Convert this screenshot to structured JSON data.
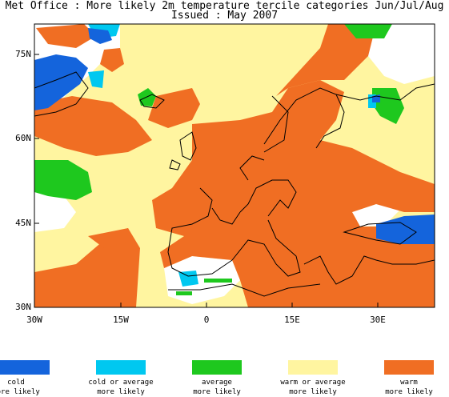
{
  "title": "Met Office : More likely 2m temperature tercile categories Jun/Jul/Aug",
  "subtitle": "Issued : May 2007",
  "axes": {
    "lat_labels": [
      "75N",
      "60N",
      "45N",
      "30N"
    ],
    "lon_labels": [
      "30W",
      "15W",
      "0",
      "15E",
      "30E"
    ]
  },
  "colors": {
    "cold": "#1464dc",
    "cold_or_average": "#00c8f0",
    "average": "#1ec81e",
    "warm_or_average": "#fff5a0",
    "warm": "#f06e23",
    "none": "#ffffff"
  },
  "legend": [
    {
      "line1": "cold",
      "line2": "more likely",
      "color": "#1464dc"
    },
    {
      "line1": "cold or average",
      "line2": "more likely",
      "color": "#00c8f0"
    },
    {
      "line1": "average",
      "line2": "more likely",
      "color": "#1ec81e"
    },
    {
      "line1": "warm or average",
      "line2": "more likely",
      "color": "#fff5a0"
    },
    {
      "line1": "warm",
      "line2": "more likely",
      "color": "#f06e23"
    }
  ]
}
